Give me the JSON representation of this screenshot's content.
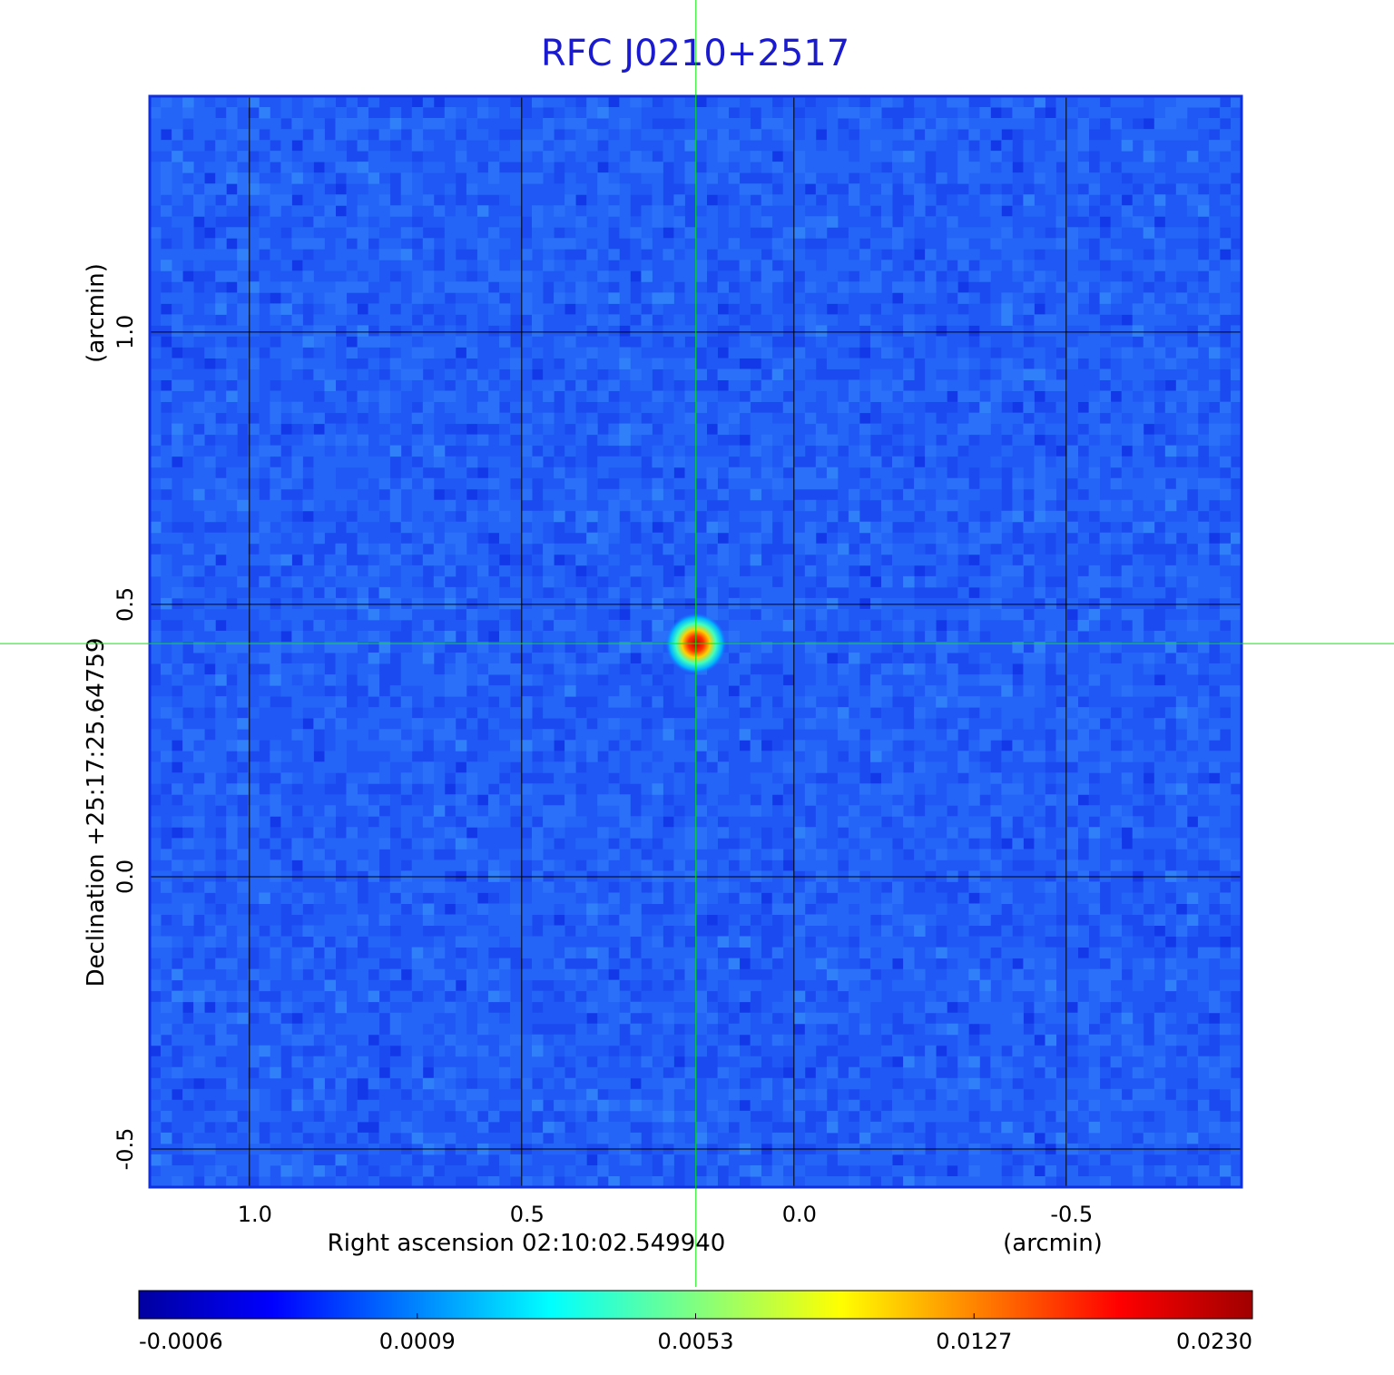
{
  "chart_data": {
    "type": "image",
    "title": "RFC J0210+2517",
    "x_label": "Right ascension  02:10:02.549940",
    "x_unit": "(arcmin)",
    "y_label": "Declination  +25:17:25.64759",
    "y_unit": "(arcmin)",
    "xlim": [
      1.183,
      -0.822
    ],
    "ylim": [
      -0.57,
      1.433
    ],
    "xticks": [
      {
        "value": 1,
        "label": "1.0"
      },
      0.5,
      {
        "value": 0,
        "label": "0.0"
      },
      -0.5
    ],
    "yticks": [
      {
        "value": 1,
        "label": "1.0"
      },
      0.5,
      {
        "value": 0,
        "label": "0.0"
      },
      -0.5
    ],
    "grid": true,
    "marker": {
      "x": 0.18,
      "y": 0.428,
      "color": "#00ee00"
    },
    "colorbar_ticks": [
      -0.0006,
      0.0009,
      0.0053,
      0.0127,
      {
        "value": 0.023,
        "label": "0.0230"
      }
    ]
  }
}
